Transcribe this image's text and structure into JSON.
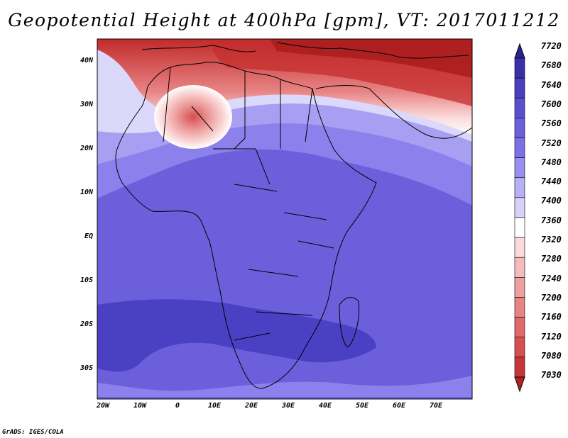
{
  "title": "Geopotential Height at 400hPa [gpm], VT: 2017011212",
  "credit": "GrADS: IGES/COLA",
  "lat_labels": [
    "40N",
    "30N",
    "20N",
    "10N",
    "EQ",
    "10S",
    "20S",
    "30S"
  ],
  "lon_labels": [
    "20W",
    "10W",
    "0",
    "10E",
    "20E",
    "30E",
    "40E",
    "50E",
    "60E",
    "70E"
  ],
  "colorbar": {
    "levels": [
      "7720",
      "7680",
      "7640",
      "7600",
      "7560",
      "7520",
      "7480",
      "7440",
      "7400",
      "7360",
      "7320",
      "7280",
      "7240",
      "7200",
      "7160",
      "7120",
      "7080",
      "7030"
    ],
    "colors": [
      "#2a2394",
      "#3a30a8",
      "#4a40bf",
      "#5a4fd0",
      "#6b5fdc",
      "#7d70e6",
      "#9a8ff0",
      "#b7b0f6",
      "#d6d2fa",
      "#ffffff",
      "#fbdada",
      "#f5bcbc",
      "#ee9f9f",
      "#e88484",
      "#e06a6a",
      "#d65050",
      "#c63636",
      "#b22222"
    ]
  },
  "map": {
    "lat_range": [
      -36,
      45
    ],
    "lon_range": [
      -22,
      80
    ],
    "palette": {
      "blue_deep": "#4a40c4",
      "blue_mid": "#6b5fdc",
      "blue_light": "#9b90f0",
      "blue_pale": "#d3cef8",
      "white": "#ffffff",
      "red_pale": "#f5c2c2",
      "red_mid": "#e07070",
      "red_deep": "#c03030",
      "red_dark": "#a81c1c"
    }
  }
}
